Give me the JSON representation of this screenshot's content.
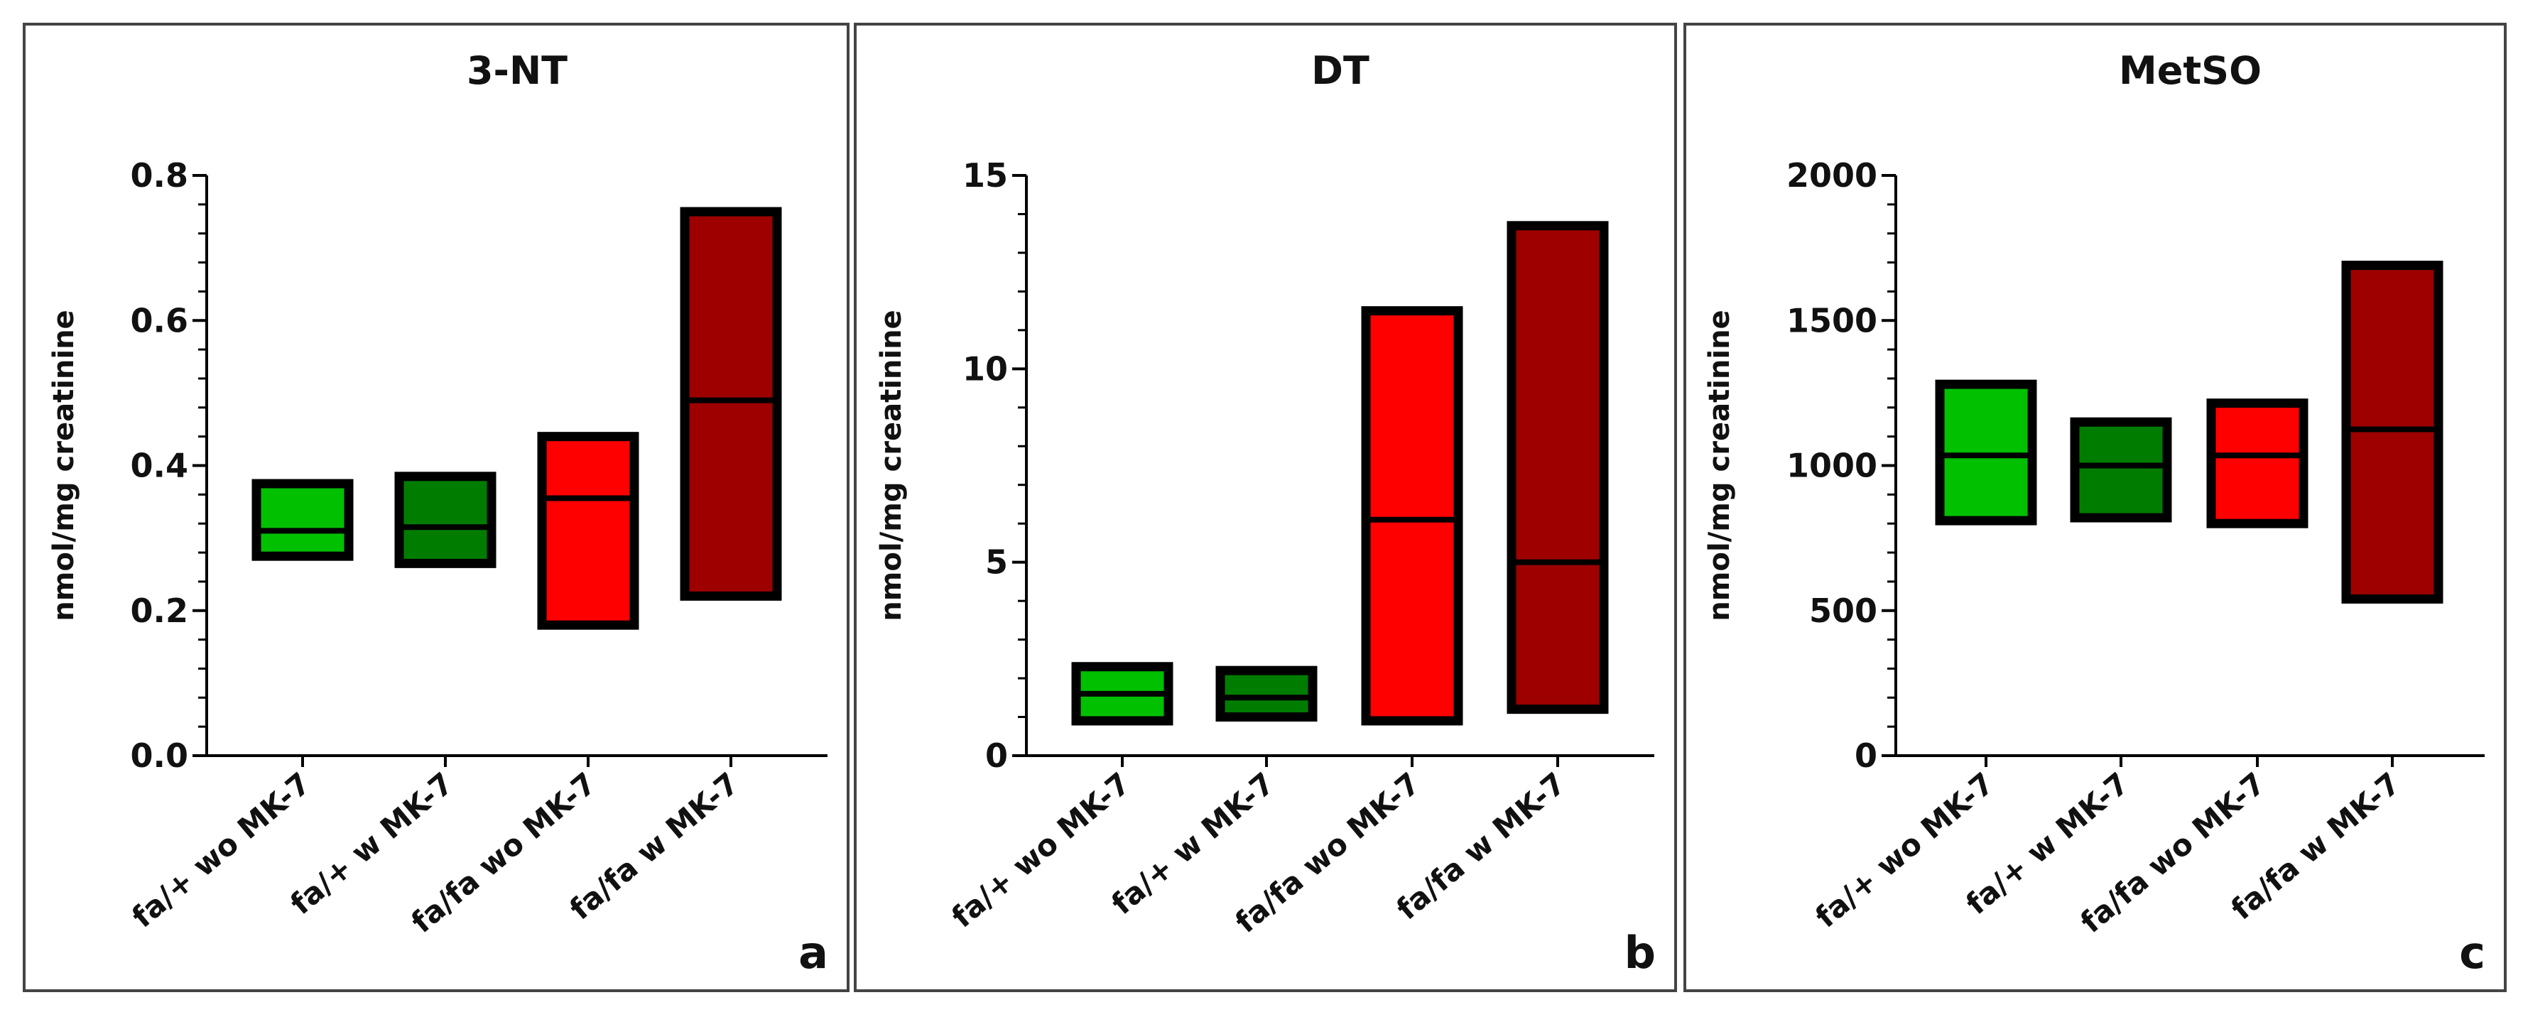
{
  "chart_data": [
    {
      "type": "box",
      "panel_label": "a",
      "title": "3-NT",
      "ylabel": "nmol/mg creatinine",
      "ylim": [
        0,
        0.8
      ],
      "yticks": [
        0.0,
        0.2,
        0.4,
        0.6,
        0.8
      ],
      "ytick_labels": [
        "0.0",
        "0.2",
        "0.4",
        "0.6",
        "0.8"
      ],
      "minor_step": 0.04,
      "categories": [
        "fa/+ wo MK-7",
        "fa/+ w MK-7",
        "fa/fa wo MK-7",
        "fa/fa w MK-7"
      ],
      "boxes": [
        {
          "low": 0.275,
          "median": 0.31,
          "high": 0.375
        },
        {
          "low": 0.265,
          "median": 0.315,
          "high": 0.385
        },
        {
          "low": 0.18,
          "median": 0.355,
          "high": 0.44
        },
        {
          "low": 0.22,
          "median": 0.49,
          "high": 0.75
        }
      ]
    },
    {
      "type": "box",
      "panel_label": "b",
      "title": "DT",
      "ylabel": "nmol/mg creatinine",
      "ylim": [
        0,
        15
      ],
      "yticks": [
        0,
        5,
        10,
        15
      ],
      "ytick_labels": [
        "0",
        "5",
        "10",
        "15"
      ],
      "minor_step": 1,
      "categories": [
        "fa/+ wo MK-7",
        "fa/+ w MK-7",
        "fa/fa wo MK-7",
        "fa/fa w MK-7"
      ],
      "boxes": [
        {
          "low": 0.9,
          "median": 1.6,
          "high": 2.3
        },
        {
          "low": 1.0,
          "median": 1.5,
          "high": 2.2
        },
        {
          "low": 0.9,
          "median": 6.1,
          "high": 11.5
        },
        {
          "low": 1.2,
          "median": 5.0,
          "high": 13.7
        }
      ]
    },
    {
      "type": "box",
      "panel_label": "c",
      "title": "MetSO",
      "ylabel": "nmol/mg creatinine",
      "ylim": [
        0,
        2000
      ],
      "yticks": [
        0,
        500,
        1000,
        1500,
        2000
      ],
      "ytick_labels": [
        "0",
        "500",
        "1000",
        "1500",
        "2000"
      ],
      "minor_step": 100,
      "categories": [
        "fa/+ wo MK-7",
        "fa/+ w MK-7",
        "fa/fa wo MK-7",
        "fa/fa w MK-7"
      ],
      "boxes": [
        {
          "low": 810,
          "median": 1035,
          "high": 1280
        },
        {
          "low": 820,
          "median": 1000,
          "high": 1150
        },
        {
          "low": 800,
          "median": 1035,
          "high": 1215
        },
        {
          "low": 540,
          "median": 1125,
          "high": 1690
        }
      ]
    }
  ],
  "colors": {
    "groups": [
      "#00c000",
      "#007d00",
      "#ff0000",
      "#9e0000"
    ],
    "stroke": "#000000",
    "frame": "#444444"
  }
}
